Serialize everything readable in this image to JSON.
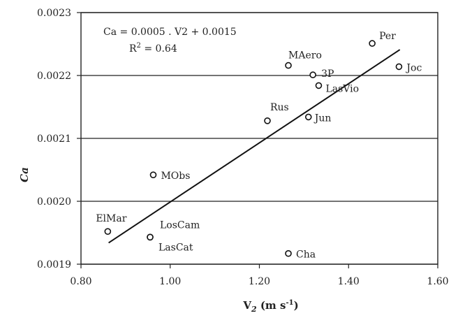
{
  "chart_data": {
    "type": "scatter",
    "xlabel": "V2 (m s-1)",
    "xlabel_parts": {
      "main": "V",
      "sub": "2",
      "unit": " (m s",
      "sup": "-1",
      "close": ")"
    },
    "ylabel": "Ca",
    "xlim": [
      0.8,
      1.6
    ],
    "ylim": [
      0.0019,
      0.0023
    ],
    "xticks": [
      0.8,
      1.0,
      1.2,
      1.4,
      1.6
    ],
    "xtick_labels": [
      "0.80",
      "1.00",
      "1.20",
      "1.40",
      "1.60"
    ],
    "yticks": [
      0.0019,
      0.002,
      0.0021,
      0.0022,
      0.0023
    ],
    "ytick_labels": [
      "0.0019",
      "0.0020",
      "0.0021",
      "0.0022",
      "0.0023"
    ],
    "grid": "horizontal",
    "annotations": {
      "equation": "Ca = 0.0005 . V2  + 0.0015",
      "r2": "R",
      "r2_sup": "2",
      "r2_value": " = 0.64"
    },
    "points": [
      {
        "label": "ElMar",
        "x": 0.86,
        "y": 0.001952
      },
      {
        "label": "LosCam",
        "x": 0.955,
        "y": 0.001943
      },
      {
        "label": "LasCat",
        "x": 0.955,
        "y": 0.001943
      },
      {
        "label": "MObs",
        "x": 0.962,
        "y": 0.002042
      },
      {
        "label": "Cha",
        "x": 1.265,
        "y": 0.001917
      },
      {
        "label": "Rus",
        "x": 1.218,
        "y": 0.002128
      },
      {
        "label": "Jun",
        "x": 1.31,
        "y": 0.002134
      },
      {
        "label": "MAero",
        "x": 1.265,
        "y": 0.002216
      },
      {
        "label": "3P",
        "x": 1.32,
        "y": 0.002201
      },
      {
        "label": "LasVio",
        "x": 1.333,
        "y": 0.002184
      },
      {
        "label": "Per",
        "x": 1.453,
        "y": 0.002251
      },
      {
        "label": "Joc",
        "x": 1.513,
        "y": 0.002214
      }
    ],
    "trendline": {
      "x": [
        0.862,
        1.515
      ],
      "y": [
        0.001934,
        0.002241
      ]
    }
  }
}
